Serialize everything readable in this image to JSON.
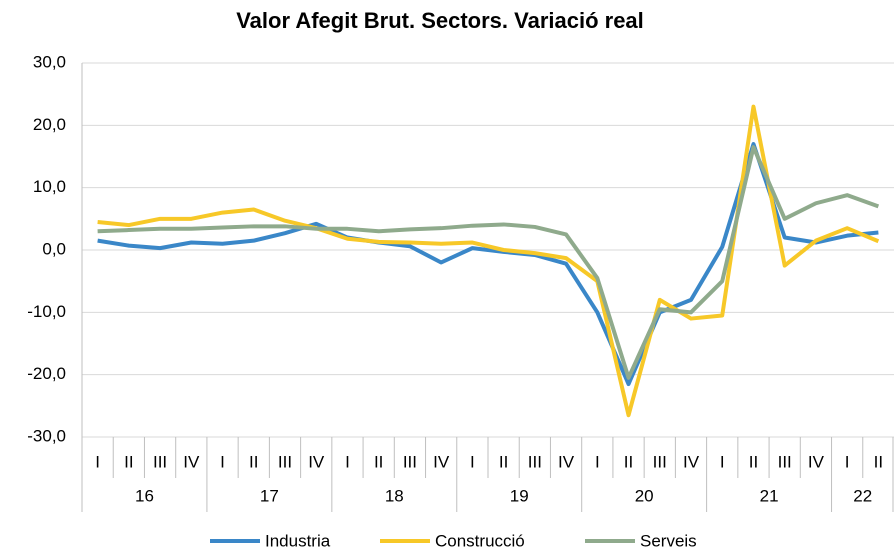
{
  "chart_data": {
    "type": "line",
    "title": "Valor Afegit Brut. Sectors. Variació real",
    "categories": [
      "I",
      "II",
      "III",
      "IV",
      "I",
      "II",
      "III",
      "IV",
      "I",
      "II",
      "III",
      "IV",
      "I",
      "II",
      "III",
      "IV",
      "I",
      "II",
      "III",
      "IV",
      "I",
      "II",
      "III",
      "IV",
      "I",
      "II"
    ],
    "category_groups": [
      "16",
      "17",
      "18",
      "19",
      "20",
      "21",
      "22"
    ],
    "series": [
      {
        "name": "Industria",
        "color": "#3a87c8",
        "values": [
          1.5,
          0.7,
          0.3,
          1.2,
          1.0,
          1.5,
          2.7,
          4.2,
          2.0,
          1.2,
          0.6,
          -2.0,
          0.3,
          -0.3,
          -0.8,
          -2.2,
          -10,
          -21.5,
          -10,
          -8,
          0.5,
          17,
          2,
          1.2,
          2.3,
          2.8
        ]
      },
      {
        "name": "Construcció",
        "color": "#f7c828",
        "values": [
          4.5,
          4.0,
          5.0,
          5.0,
          6.0,
          6.5,
          4.7,
          3.5,
          1.8,
          1.3,
          1.2,
          1.0,
          1.2,
          0,
          -0.5,
          -1.3,
          -5,
          -26.5,
          -8,
          -11,
          -10.5,
          23,
          -2.5,
          1.5,
          3.5,
          1.4
        ]
      },
      {
        "name": "Serveis",
        "color": "#8faa8c",
        "values": [
          3.0,
          3.2,
          3.4,
          3.4,
          3.6,
          3.8,
          3.8,
          3.4,
          3.4,
          3.0,
          3.3,
          3.5,
          3.9,
          4.1,
          3.7,
          2.5,
          -4.5,
          -20.5,
          -9.5,
          -10,
          -5,
          16.5,
          5,
          7.5,
          8.8,
          7.0
        ]
      }
    ],
    "ylim": [
      -30,
      30
    ],
    "yticks": [
      {
        "value": -30,
        "label": "-30,0"
      },
      {
        "value": -20,
        "label": "-20,0"
      },
      {
        "value": -10,
        "label": "-10,0"
      },
      {
        "value": 0,
        "label": "0,0"
      },
      {
        "value": 10,
        "label": "10,0"
      },
      {
        "value": 20,
        "label": "20,0"
      },
      {
        "value": 30,
        "label": "30,0"
      }
    ],
    "grid": true,
    "legend": "bottom"
  }
}
